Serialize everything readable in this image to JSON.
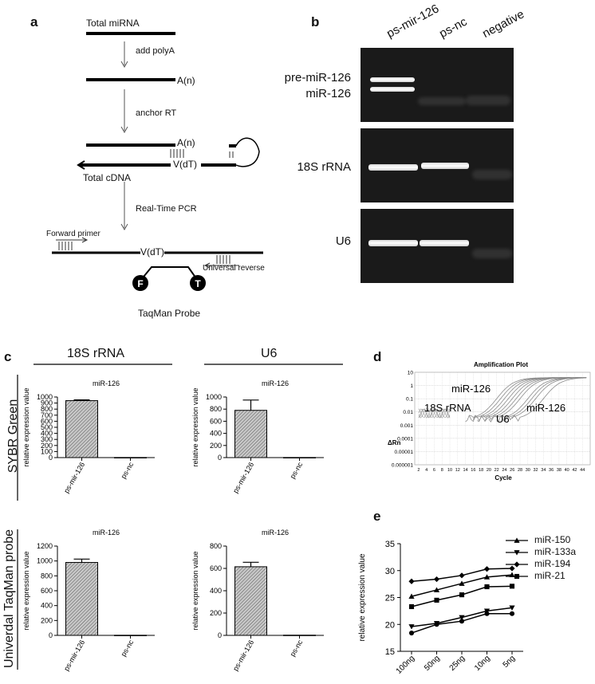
{
  "panel_letters": {
    "a": "a",
    "b": "b",
    "c": "c",
    "d": "d",
    "e": "e"
  },
  "panel_a": {
    "total_mirna": "Total miRNA",
    "add_polya": "add polyA",
    "an1": "A(n)",
    "anchor_rt": "anchor RT",
    "an2": "A(n)",
    "vdt1": "V(dT)",
    "total_cdna": "Total cDNA",
    "real_time_pcr": "Real-Time PCR",
    "forward_primer": "Forward primer",
    "vdt2": "V(dT)",
    "universal_reverse": "Universal reverse",
    "probe_f": "F",
    "probe_t": "T",
    "taqman_probe": "TaqMan Probe"
  },
  "panel_b": {
    "lanes": [
      "ps-mir-126",
      "ps-nc",
      "negative"
    ],
    "rows": {
      "pre": "pre-miR-126",
      "mir": "miR-126",
      "r18s": "18S rRNA",
      "u6": "U6"
    }
  },
  "panel_c": {
    "col_headers": [
      "18S rRNA",
      "U6"
    ],
    "row_headers": [
      "SYBR Green",
      "Univerdal TaqMan probe"
    ],
    "ylabel": "relative expression value",
    "categories": [
      "ps-mir-126",
      "ps-nc"
    ]
  },
  "panel_d": {
    "title": "Amplification Plot",
    "ylabel": "ΔRn",
    "xlabel": "Cycle",
    "annotations": [
      "miR-126",
      "18S rRNA",
      "U6",
      "miR-126"
    ]
  },
  "panel_e": {
    "legend": [
      "miR-150",
      "miR-133a",
      "miR-194",
      "miR-21"
    ]
  },
  "chart_data": [
    {
      "type": "bar",
      "title": "miR-126",
      "ylabel": "relative expression value",
      "categories": [
        "ps-mir-126",
        "ps-nc"
      ],
      "values": [
        940,
        2
      ],
      "errors": [
        12,
        0
      ],
      "ylim": [
        0,
        1000
      ],
      "yticks": [
        0,
        100,
        200,
        300,
        400,
        500,
        600,
        700,
        800,
        900,
        1000
      ]
    },
    {
      "type": "bar",
      "title": "miR-126",
      "ylabel": "relative expression value",
      "categories": [
        "ps-mir-126",
        "ps-nc"
      ],
      "values": [
        780,
        2
      ],
      "errors": [
        170,
        0
      ],
      "ylim": [
        0,
        1000
      ],
      "yticks": [
        0,
        200,
        400,
        600,
        800,
        1000
      ]
    },
    {
      "type": "bar",
      "title": "miR-126",
      "ylabel": "relative expression value",
      "categories": [
        "ps-mir-126",
        "ps-nc"
      ],
      "values": [
        980,
        2
      ],
      "errors": [
        45,
        0
      ],
      "ylim": [
        0,
        1200
      ],
      "yticks": [
        0,
        200,
        400,
        600,
        800,
        1000,
        1200
      ]
    },
    {
      "type": "bar",
      "title": "miR-126",
      "ylabel": "relative expression value",
      "categories": [
        "ps-mir-126",
        "ps-nc"
      ],
      "values": [
        615,
        2
      ],
      "errors": [
        40,
        0
      ],
      "ylim": [
        0,
        800
      ],
      "yticks": [
        0,
        200,
        400,
        600,
        800
      ]
    },
    {
      "type": "line",
      "title": "",
      "xlabel": "",
      "ylabel": "relative expression value",
      "categories": [
        "100ng",
        "50ng",
        "25ng",
        "10ng",
        "5ng"
      ],
      "ylim": [
        15,
        35
      ],
      "yticks": [
        15,
        20,
        25,
        30,
        35
      ],
      "series": [
        {
          "name": "miR-150",
          "marker": "triangle-up",
          "values": [
            25.2,
            26.4,
            27.6,
            28.8,
            29.2
          ]
        },
        {
          "name": "miR-133a",
          "marker": "triangle-down",
          "values": [
            19.6,
            20.2,
            21.3,
            22.5,
            23.1
          ]
        },
        {
          "name": "miR-194",
          "marker": "diamond",
          "values": [
            28.0,
            28.4,
            29.1,
            30.3,
            30.4
          ]
        },
        {
          "name": "miR-21",
          "marker": "square",
          "values": [
            23.3,
            24.5,
            25.5,
            27.0,
            27.1
          ]
        },
        {
          "name": "",
          "marker": "circle",
          "values": [
            18.4,
            20.0,
            20.6,
            22.0,
            22.0
          ]
        }
      ]
    },
    {
      "type": "line",
      "title": "Amplification Plot",
      "xlabel": "Cycle",
      "ylabel": "ΔRn",
      "yscale": "log",
      "ylim": [
        1e-06,
        10
      ],
      "yticks": [
        "10",
        "1",
        "0.1",
        "0.01",
        "0.001",
        "0.0001",
        "0.00001",
        "0.000001"
      ],
      "xticks": [
        2,
        4,
        6,
        8,
        10,
        12,
        14,
        16,
        18,
        20,
        22,
        24,
        26,
        28,
        30,
        32,
        34,
        36,
        38,
        40,
        42,
        44
      ]
    }
  ]
}
